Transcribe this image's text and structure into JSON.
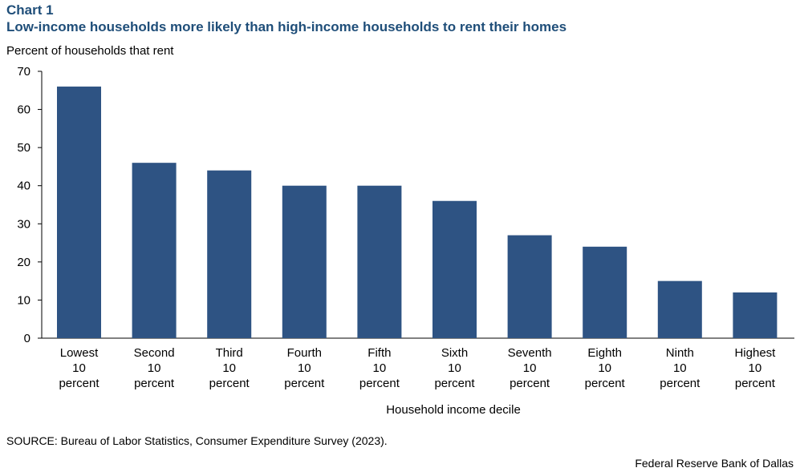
{
  "chart_data": {
    "type": "bar",
    "label": "Chart 1",
    "title": "Low-income households more likely than high-income households to rent their homes",
    "ylabel": "Percent of households  that rent",
    "xlabel": "Household  income decile",
    "categories": [
      [
        "Lowest",
        "10",
        "percent"
      ],
      [
        "Second",
        "10",
        "percent"
      ],
      [
        "Third",
        "10",
        "percent"
      ],
      [
        "Fourth",
        "10",
        "percent"
      ],
      [
        "Fifth",
        "10",
        "percent"
      ],
      [
        "Sixth",
        "10",
        "percent"
      ],
      [
        "Seventh",
        "10",
        "percent"
      ],
      [
        "Eighth",
        "10",
        "percent"
      ],
      [
        "Ninth",
        "10",
        "percent"
      ],
      [
        "Highest",
        "10",
        "percent"
      ]
    ],
    "values": [
      66,
      46,
      44,
      40,
      40,
      36,
      27,
      24,
      15,
      12
    ],
    "ylim": [
      0,
      70
    ],
    "yticks": [
      0,
      10,
      20,
      30,
      40,
      50,
      60,
      70
    ],
    "grid": false,
    "bar_color": "#2e5383"
  },
  "source": "SOURCE: Bureau of Labor Statistics, Consumer Expenditure Survey (2023).",
  "brand": "Federal Reserve Bank of Dallas"
}
